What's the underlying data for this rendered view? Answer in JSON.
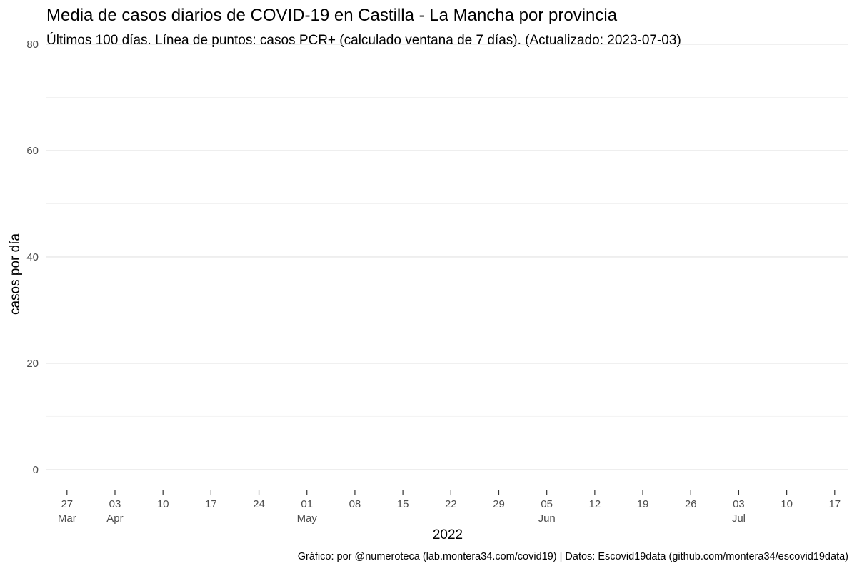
{
  "chart_data": {
    "type": "line",
    "title": "Media de casos diarios de COVID-19 en Castilla - La Mancha por provincia",
    "subtitle": "Últimos 100 días. Línea de puntos: casos PCR+ (calculado ventana de 7 días). (Actualizado: 2023-07-03)",
    "xlabel": "2022",
    "ylabel": "casos por día",
    "caption": "Gráfico: por @numeroteca (lab.montera34.com/covid19) | Datos: Escovid19data (github.com/montera34/escovid19data)",
    "xlim": [
      "2022-03-24",
      "2022-07-19"
    ],
    "ylim": [
      -3.5,
      80
    ],
    "y_ticks": [
      0,
      20,
      40,
      60,
      80
    ],
    "x_ticks": [
      {
        "date": "2022-03-27",
        "label": "27",
        "month": "Mar"
      },
      {
        "date": "2022-04-03",
        "label": "03",
        "month": "Apr"
      },
      {
        "date": "2022-04-10",
        "label": "10",
        "month": ""
      },
      {
        "date": "2022-04-17",
        "label": "17",
        "month": ""
      },
      {
        "date": "2022-04-24",
        "label": "24",
        "month": ""
      },
      {
        "date": "2022-05-01",
        "label": "01",
        "month": "May"
      },
      {
        "date": "2022-05-08",
        "label": "08",
        "month": ""
      },
      {
        "date": "2022-05-15",
        "label": "15",
        "month": ""
      },
      {
        "date": "2022-05-22",
        "label": "22",
        "month": ""
      },
      {
        "date": "2022-05-29",
        "label": "29",
        "month": ""
      },
      {
        "date": "2022-06-05",
        "label": "05",
        "month": "Jun"
      },
      {
        "date": "2022-06-12",
        "label": "12",
        "month": ""
      },
      {
        "date": "2022-06-19",
        "label": "19",
        "month": ""
      },
      {
        "date": "2022-06-26",
        "label": "26",
        "month": ""
      },
      {
        "date": "2022-07-03",
        "label": "03",
        "month": "Jul"
      },
      {
        "date": "2022-07-10",
        "label": "10",
        "month": ""
      },
      {
        "date": "2022-07-17",
        "label": "17",
        "month": ""
      }
    ],
    "series": [],
    "grid": true,
    "legend": "none",
    "colors": {
      "grid_major": "#ebebeb",
      "grid_minor": "#f2f2f2",
      "tick_text": "#4d4d4d"
    }
  }
}
